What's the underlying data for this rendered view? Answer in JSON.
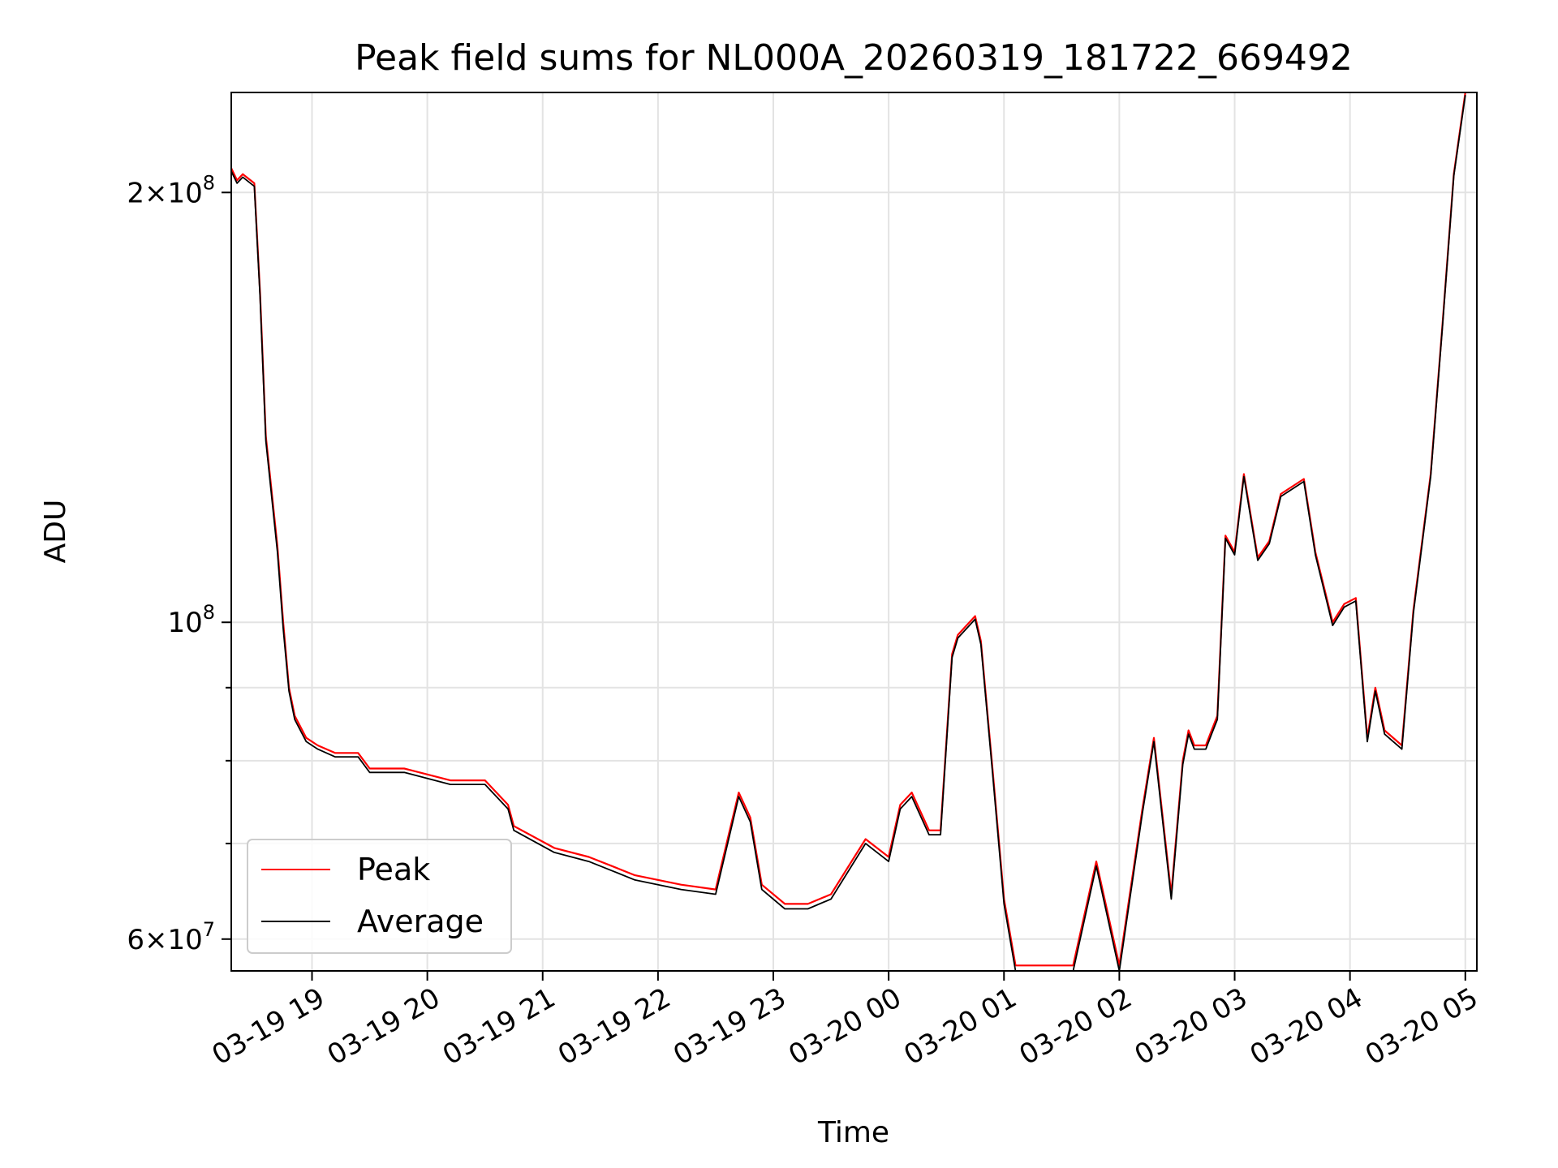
{
  "chart_data": {
    "type": "line",
    "title": "Peak field sums for NL000A_20260319_181722_669492",
    "xlabel": "Time",
    "ylabel": "ADU",
    "yscale": "log",
    "xlim": [
      18.3,
      29.1
    ],
    "ylim": [
      57000000,
      235000000
    ],
    "x_ticks": [
      {
        "value": 19,
        "label": "03-19 19"
      },
      {
        "value": 20,
        "label": "03-19 20"
      },
      {
        "value": 21,
        "label": "03-19 21"
      },
      {
        "value": 22,
        "label": "03-19 22"
      },
      {
        "value": 23,
        "label": "03-19 23"
      },
      {
        "value": 24,
        "label": "03-20 00"
      },
      {
        "value": 25,
        "label": "03-20 01"
      },
      {
        "value": 26,
        "label": "03-20 02"
      },
      {
        "value": 27,
        "label": "03-20 03"
      },
      {
        "value": 28,
        "label": "03-20 04"
      },
      {
        "value": 29,
        "label": "03-20 05"
      }
    ],
    "y_major_ticks": [
      {
        "value": 60000000,
        "mantissa": "6",
        "exponent": "7"
      },
      {
        "value": 100000000,
        "mantissa": "",
        "exponent": "8"
      },
      {
        "value": 200000000,
        "mantissa": "2",
        "exponent": "8"
      }
    ],
    "y_minor_grid": [
      70000000,
      80000000,
      90000000
    ],
    "grid": true,
    "legend_position": "lower-left",
    "series": [
      {
        "name": "Peak",
        "color": "#ff0000",
        "x": [
          18.3,
          18.35,
          18.4,
          18.5,
          18.55,
          18.6,
          18.7,
          18.75,
          18.8,
          18.85,
          18.95,
          19.05,
          19.2,
          19.4,
          19.5,
          19.6,
          19.8,
          20.2,
          20.5,
          20.7,
          20.75,
          21.1,
          21.4,
          21.6,
          21.8,
          22.2,
          22.5,
          22.7,
          22.8,
          22.9,
          23.1,
          23.3,
          23.5,
          23.8,
          24.0,
          24.1,
          24.2,
          24.35,
          24.45,
          24.55,
          24.6,
          24.75,
          24.8,
          24.9,
          25.0,
          25.1,
          25.3,
          25.6,
          25.8,
          26.0,
          26.2,
          26.3,
          26.45,
          26.55,
          26.6,
          26.65,
          26.75,
          26.8,
          26.85,
          26.92,
          27.0,
          27.08,
          27.2,
          27.3,
          27.4,
          27.6,
          27.7,
          27.85,
          27.95,
          28.05,
          28.15,
          28.22,
          28.3,
          28.45,
          28.55,
          28.7,
          28.8,
          28.9,
          29.0
        ],
        "values": [
          208000000,
          204000000,
          206000000,
          203000000,
          170000000,
          135000000,
          113000000,
          100000000,
          90000000,
          86000000,
          83000000,
          82000000,
          81000000,
          81000000,
          79000000,
          79000000,
          79000000,
          77500000,
          77500000,
          74500000,
          72000000,
          69500000,
          68500000,
          67500000,
          66500000,
          65500000,
          65000000,
          76000000,
          73000000,
          65500000,
          63500000,
          63500000,
          64500000,
          70500000,
          68500000,
          74500000,
          76000000,
          71500000,
          71500000,
          95000000,
          98000000,
          101000000,
          97000000,
          79000000,
          64000000,
          57500000,
          57500000,
          57500000,
          68000000,
          57500000,
          74000000,
          83000000,
          64500000,
          80000000,
          84000000,
          82000000,
          82000000,
          84000000,
          86000000,
          115000000,
          112000000,
          127000000,
          111000000,
          114000000,
          123000000,
          126000000,
          112000000,
          100000000,
          103000000,
          104000000,
          83000000,
          90000000,
          84000000,
          82000000,
          102000000,
          127000000,
          161000000,
          206000000,
          235000000
        ]
      },
      {
        "name": "Average",
        "color": "#000000",
        "x": [
          18.3,
          18.35,
          18.4,
          18.5,
          18.55,
          18.6,
          18.7,
          18.75,
          18.8,
          18.85,
          18.95,
          19.05,
          19.2,
          19.4,
          19.5,
          19.6,
          19.8,
          20.2,
          20.5,
          20.7,
          20.75,
          21.1,
          21.4,
          21.6,
          21.8,
          22.2,
          22.5,
          22.7,
          22.8,
          22.9,
          23.1,
          23.3,
          23.5,
          23.8,
          24.0,
          24.1,
          24.2,
          24.35,
          24.45,
          24.55,
          24.6,
          24.75,
          24.8,
          24.9,
          25.0,
          25.1,
          25.3,
          25.6,
          25.8,
          26.0,
          26.2,
          26.3,
          26.45,
          26.55,
          26.6,
          26.65,
          26.75,
          26.8,
          26.85,
          26.92,
          27.0,
          27.08,
          27.2,
          27.3,
          27.4,
          27.6,
          27.7,
          27.85,
          27.95,
          28.05,
          28.15,
          28.22,
          28.3,
          28.45,
          28.55,
          28.7,
          28.8,
          28.9,
          29.0
        ],
        "values": [
          207000000,
          203000000,
          205000000,
          202000000,
          169000000,
          134000000,
          112000000,
          99000000,
          89500000,
          85500000,
          82500000,
          81500000,
          80500000,
          80500000,
          78500000,
          78500000,
          78500000,
          77000000,
          77000000,
          74000000,
          71500000,
          69000000,
          68000000,
          67000000,
          66000000,
          65000000,
          64500000,
          75500000,
          72500000,
          65000000,
          63000000,
          63000000,
          64000000,
          70000000,
          68000000,
          74000000,
          75500000,
          71000000,
          71000000,
          94500000,
          97500000,
          100500000,
          96500000,
          78500000,
          63500000,
          57000000,
          57000000,
          57000000,
          67500000,
          57000000,
          73500000,
          82500000,
          64000000,
          79500000,
          83500000,
          81500000,
          81500000,
          83500000,
          85500000,
          114500000,
          111500000,
          126500000,
          110500000,
          113500000,
          122500000,
          125500000,
          111500000,
          99500000,
          102500000,
          103500000,
          82500000,
          89500000,
          83500000,
          81500000,
          101500000,
          126500000,
          160500000,
          205500000,
          234000000
        ]
      }
    ]
  }
}
